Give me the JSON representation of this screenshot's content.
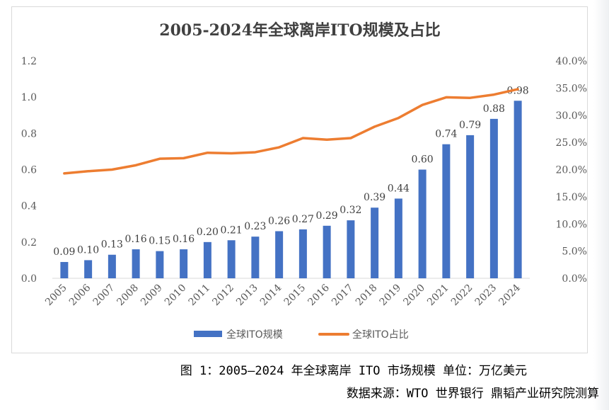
{
  "figure_caption": "图 1：2005—2024 年全球离岸 ITO 市场规模  单位：万亿美元",
  "source_note": "数据来源：WTO 世界银行 鼎韬产业研究院测算",
  "colors": {
    "bar": "#4472c4",
    "line": "#ed7d31",
    "text": "#595959",
    "title": "#404040"
  },
  "chart_data": {
    "type": "bar",
    "title": "2005-2024年全球离岸ITO规模及占比",
    "categories": [
      "2005",
      "2006",
      "2007",
      "2008",
      "2009",
      "2010",
      "2011",
      "2012",
      "2013",
      "2014",
      "2015",
      "2016",
      "2017",
      "2018",
      "2019",
      "2020",
      "2021",
      "2022",
      "2023",
      "2024"
    ],
    "series": [
      {
        "name": "全球ITO规模",
        "type": "bar",
        "axis": "left",
        "values": [
          0.09,
          0.1,
          0.13,
          0.16,
          0.15,
          0.16,
          0.2,
          0.21,
          0.23,
          0.26,
          0.27,
          0.29,
          0.32,
          0.39,
          0.44,
          0.6,
          0.74,
          0.79,
          0.88,
          0.98
        ],
        "labels": [
          "0.09",
          "0.10",
          "0.13",
          "0.16",
          "0.15",
          "0.16",
          "0.20",
          "0.21",
          "0.23",
          "0.26",
          "0.27",
          "0.29",
          "0.32",
          "0.39",
          "0.44",
          "0.60",
          "0.74",
          "0.79",
          "0.88",
          "0.98"
        ]
      },
      {
        "name": "全球ITO占比",
        "type": "line",
        "axis": "right",
        "values": [
          19.3,
          19.7,
          20.0,
          20.8,
          22.0,
          22.1,
          23.1,
          23.0,
          23.2,
          24.1,
          25.8,
          25.5,
          25.8,
          27.9,
          29.5,
          31.9,
          33.3,
          33.2,
          33.8,
          34.8
        ]
      }
    ],
    "y_left": {
      "range": [
        0,
        1.2
      ],
      "ticks": [
        "0.0",
        "0.2",
        "0.4",
        "0.6",
        "0.8",
        "1.0",
        "1.2"
      ]
    },
    "y_right": {
      "range": [
        0,
        40
      ],
      "ticks": [
        "0.0%",
        "5.0%",
        "10.0%",
        "15.0%",
        "20.0%",
        "25.0%",
        "30.0%",
        "35.0%",
        "40.0%"
      ]
    },
    "grid": false,
    "legend_position": "bottom"
  }
}
